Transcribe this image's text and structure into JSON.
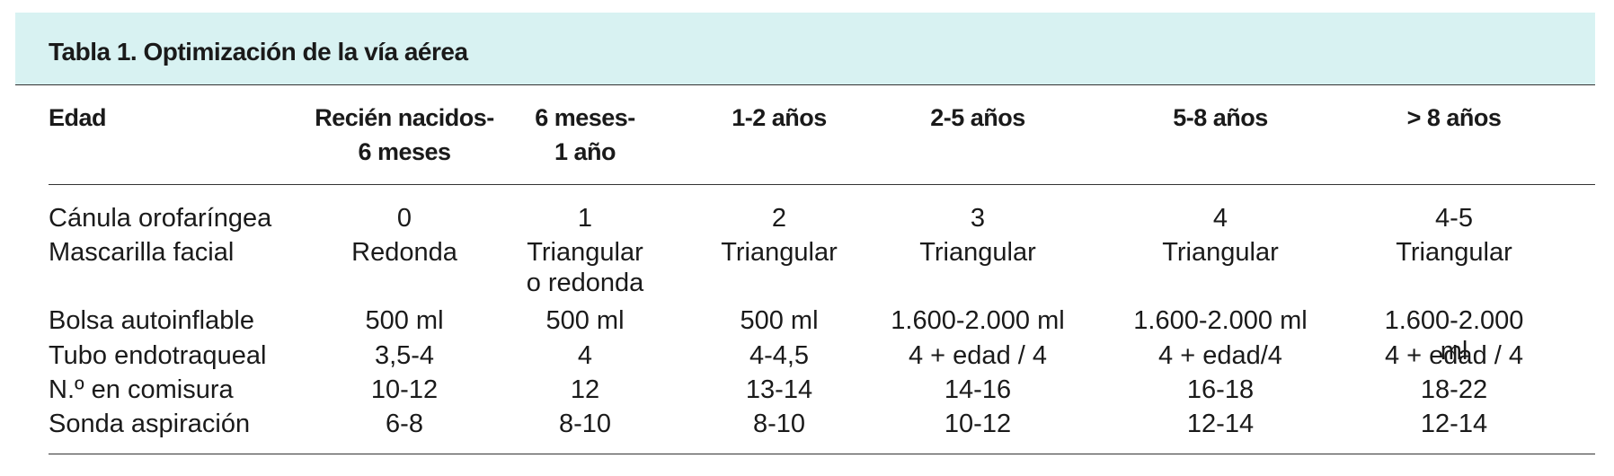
{
  "header": {
    "title": "Tabla 1. Optimización de la vía aérea"
  },
  "table": {
    "columns": [
      "Edad",
      "Recién nacidos-\n6 meses",
      "6 meses-\n1 año",
      "1-2 años",
      "2-5 años",
      "5-8 años",
      "> 8 años"
    ],
    "rows": [
      [
        "Cánula orofaríngea",
        "0",
        "1",
        "2",
        "3",
        "4",
        "4-5"
      ],
      [
        "Mascarilla facial",
        "Redonda",
        "Triangular\no redonda",
        "Triangular",
        "Triangular",
        "Triangular",
        "Triangular"
      ],
      [
        "Bolsa autoinflable",
        "500 ml",
        "500 ml",
        "500 ml",
        "1.600-2.000 ml",
        "1.600-2.000 ml",
        "1.600-2.000 ml"
      ],
      [
        "Tubo endotraqueal",
        "3,5-4",
        "4",
        "4-4,5",
        "4 + edad / 4",
        "4 + edad/4",
        "4 + edad / 4"
      ],
      [
        "N.º en comisura",
        "10-12",
        "12",
        "13-14",
        "14-16",
        "16-18",
        "18-22"
      ],
      [
        "Sonda aspiración",
        "6-8",
        "8-10",
        "8-10",
        "10-12",
        "12-14",
        "12-14"
      ]
    ]
  }
}
